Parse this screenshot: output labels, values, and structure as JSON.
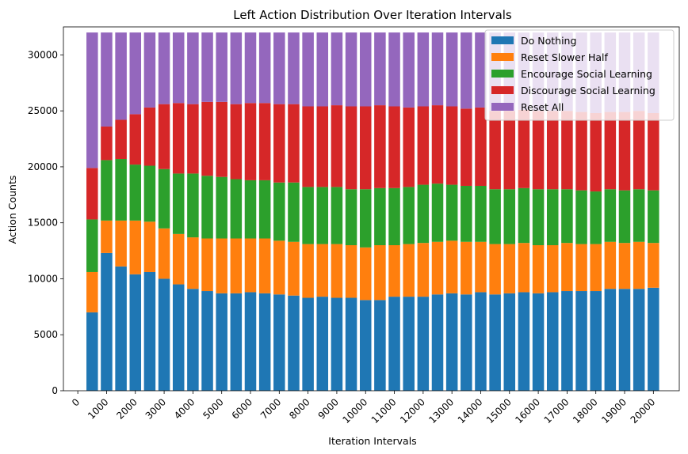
{
  "chart_data": {
    "type": "bar",
    "stacked": true,
    "title": "Left Action Distribution Over Iteration Intervals",
    "xlabel": "Iteration Intervals",
    "ylabel": "Action Counts",
    "xlim": [
      -500,
      20900
    ],
    "ylim": [
      0,
      32500
    ],
    "x_ticks": [
      0,
      1000,
      2000,
      3000,
      4000,
      5000,
      6000,
      7000,
      8000,
      9000,
      10000,
      11000,
      12000,
      13000,
      14000,
      15000,
      16000,
      17000,
      18000,
      19000,
      20000
    ],
    "y_ticks": [
      0,
      5000,
      10000,
      15000,
      20000,
      25000,
      30000
    ],
    "legend_position": "top-right",
    "bar_width": 400,
    "x": [
      500,
      1000,
      1500,
      2000,
      2500,
      3000,
      3500,
      4000,
      4500,
      5000,
      5500,
      6000,
      6500,
      7000,
      7500,
      8000,
      8500,
      9000,
      9500,
      10000,
      10500,
      11000,
      11500,
      12000,
      12500,
      13000,
      13500,
      14000,
      14500,
      15000,
      15500,
      16000,
      16500,
      17000,
      17500,
      18000,
      18500,
      19000,
      19500,
      20000
    ],
    "series": [
      {
        "name": "Do Nothing",
        "color": "#1f77b4",
        "values": [
          7000,
          12300,
          11100,
          10400,
          10600,
          10000,
          9500,
          9100,
          8900,
          8700,
          8700,
          8800,
          8700,
          8600,
          8500,
          8300,
          8400,
          8300,
          8300,
          8100,
          8100,
          8400,
          8400,
          8400,
          8600,
          8700,
          8600,
          8800,
          8600,
          8700,
          8800,
          8700,
          8800,
          8900,
          8900,
          8900,
          9100,
          9100,
          9100,
          9200
        ]
      },
      {
        "name": "Reset Slower Half",
        "color": "#ff7f0e",
        "values": [
          3600,
          2900,
          4100,
          4800,
          4500,
          4500,
          4500,
          4600,
          4700,
          4900,
          4900,
          4800,
          4900,
          4800,
          4800,
          4800,
          4700,
          4800,
          4700,
          4700,
          4900,
          4600,
          4700,
          4800,
          4700,
          4700,
          4700,
          4500,
          4500,
          4400,
          4400,
          4300,
          4200,
          4300,
          4200,
          4200,
          4200,
          4100,
          4200,
          4000
        ]
      },
      {
        "name": "Encourage Social Learning",
        "color": "#2ca02c",
        "values": [
          4700,
          5400,
          5500,
          5000,
          5000,
          5300,
          5400,
          5700,
          5600,
          5500,
          5300,
          5200,
          5200,
          5200,
          5300,
          5100,
          5100,
          5100,
          5000,
          5200,
          5100,
          5100,
          5100,
          5200,
          5200,
          5000,
          5000,
          5000,
          4900,
          4900,
          4900,
          5000,
          5000,
          4800,
          4800,
          4700,
          4700,
          4700,
          4700,
          4700
        ]
      },
      {
        "name": "Discourage Social Learning",
        "color": "#d62728",
        "values": [
          4600,
          3000,
          3500,
          4500,
          5200,
          5800,
          6300,
          6200,
          6600,
          6700,
          6700,
          6900,
          6900,
          7000,
          7000,
          7200,
          7200,
          7300,
          7400,
          7400,
          7400,
          7300,
          7100,
          7000,
          7000,
          7000,
          6900,
          7000,
          7000,
          7000,
          7000,
          7000,
          7000,
          7000,
          7000,
          7000,
          6900,
          7000,
          7000,
          6900
        ]
      },
      {
        "name": "Reset All",
        "color": "#9467bd",
        "values": [
          12100,
          8400,
          7800,
          7300,
          6700,
          6400,
          6300,
          6400,
          6200,
          6200,
          6400,
          6300,
          6300,
          6400,
          6400,
          6600,
          6600,
          6500,
          6600,
          6600,
          6500,
          6600,
          6700,
          6600,
          6500,
          6600,
          6800,
          6700,
          7000,
          7000,
          6900,
          7000,
          7000,
          7000,
          7100,
          7200,
          7100,
          7100,
          7000,
          7200
        ]
      }
    ]
  }
}
